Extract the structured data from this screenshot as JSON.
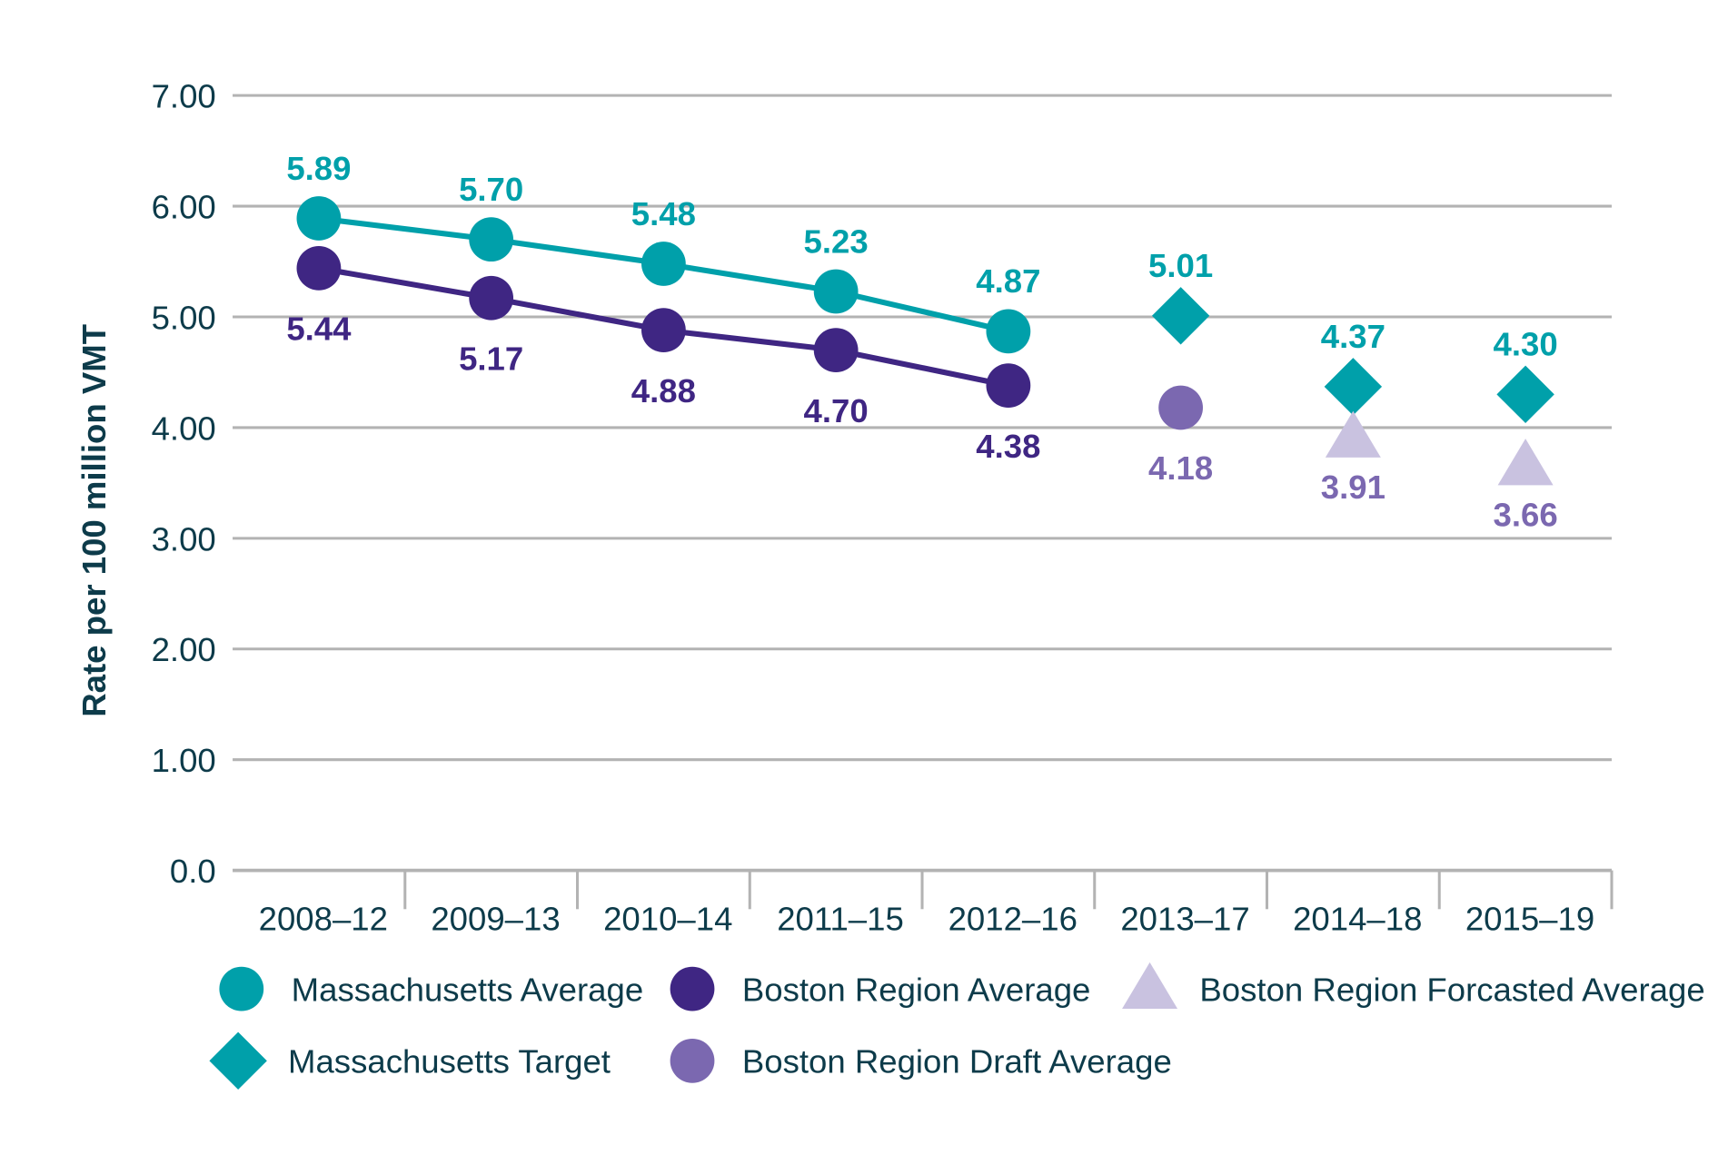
{
  "chart_data": {
    "type": "line",
    "title": "",
    "xlabel": "",
    "ylabel": "Rate per 100 million VMT",
    "ylim": [
      0,
      7
    ],
    "yticks": [
      "0.0",
      "1.00",
      "2.00",
      "3.00",
      "4.00",
      "5.00",
      "6.00",
      "7.00"
    ],
    "grid": true,
    "legend_position": "bottom",
    "categories": [
      "2008–12",
      "2009–13",
      "2010–14",
      "2011–15",
      "2012–16",
      "2013–17",
      "2014–18",
      "2015–19"
    ],
    "series": [
      {
        "name": "Massachusetts Average",
        "marker": "circle",
        "line": true,
        "color": "#00a0aa",
        "label_color": "#00a0aa",
        "label_pos": "above",
        "values": [
          5.89,
          5.7,
          5.48,
          5.23,
          4.87,
          null,
          null,
          null
        ],
        "labels": [
          "5.89",
          "5.70",
          "5.48",
          "5.23",
          "4.87",
          null,
          null,
          null
        ]
      },
      {
        "name": "Boston Region Average",
        "marker": "circle",
        "line": true,
        "color": "#3f2683",
        "label_color": "#3f2683",
        "label_pos": "below",
        "values": [
          5.44,
          5.17,
          4.88,
          4.7,
          4.38,
          null,
          null,
          null
        ],
        "labels": [
          "5.44",
          "5.17",
          "4.88",
          "4.70",
          "4.38",
          null,
          null,
          null
        ]
      },
      {
        "name": "Massachusetts Target",
        "marker": "diamond",
        "line": false,
        "color": "#00a0aa",
        "label_color": "#00a0aa",
        "label_pos": "above",
        "values": [
          null,
          null,
          null,
          null,
          null,
          5.01,
          4.37,
          4.3
        ],
        "labels": [
          null,
          null,
          null,
          null,
          null,
          "5.01",
          "4.37",
          "4.30"
        ]
      },
      {
        "name": "Boston Region Draft Average",
        "marker": "circle",
        "line": false,
        "color": "#7b68b0",
        "label_color": "#7b68b0",
        "label_pos": "below",
        "values": [
          null,
          null,
          null,
          null,
          null,
          4.18,
          null,
          null
        ],
        "labels": [
          null,
          null,
          null,
          null,
          null,
          "4.18",
          null,
          null
        ]
      },
      {
        "name": "Boston Region Forcasted Average",
        "marker": "triangle",
        "line": false,
        "color": "#c9c2e0",
        "label_color": "#7b68b0",
        "label_pos": "below",
        "values": [
          null,
          null,
          null,
          null,
          null,
          null,
          3.91,
          3.66
        ],
        "labels": [
          null,
          null,
          null,
          null,
          null,
          null,
          "3.91",
          "3.66"
        ]
      }
    ]
  }
}
